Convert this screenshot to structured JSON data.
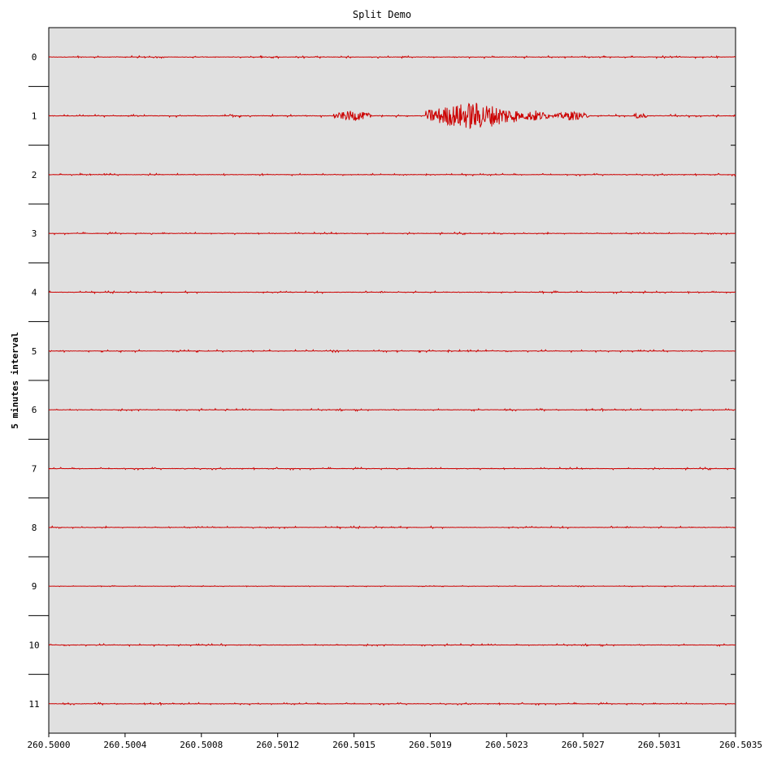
{
  "chart_data": {
    "type": "line",
    "title": "Split Demo",
    "xlabel": "",
    "ylabel": "5 minutes interval",
    "x_tick_labels": [
      "260.5000",
      "260.5004",
      "260.5008",
      "260.5012",
      "260.5015",
      "260.5019",
      "260.5023",
      "260.5027",
      "260.5031",
      "260.5035"
    ],
    "xlim": [
      260.5,
      260.5035
    ],
    "y_tick_labels": [
      "0",
      "1",
      "2",
      "3",
      "4",
      "5",
      "6",
      "7",
      "8",
      "9",
      "10",
      "11"
    ],
    "grid": false,
    "legend": "none",
    "series_color": "#cc0000",
    "background_color": "#e0e0e0",
    "series": [
      {
        "trace": 0,
        "amplitude": 0.04,
        "bursts": []
      },
      {
        "trace": 1,
        "amplitude": 0.05,
        "bursts": [
          {
            "start": 260.50145,
            "end": 260.50165,
            "amp": 0.18
          },
          {
            "start": 260.50192,
            "end": 260.5024,
            "amp": 0.48
          },
          {
            "start": 260.5024,
            "end": 260.50255,
            "amp": 0.2
          },
          {
            "start": 260.50258,
            "end": 260.50275,
            "amp": 0.16
          },
          {
            "start": 260.50298,
            "end": 260.50305,
            "amp": 0.12
          }
        ]
      },
      {
        "trace": 2,
        "amplitude": 0.04,
        "bursts": []
      },
      {
        "trace": 3,
        "amplitude": 0.04,
        "bursts": []
      },
      {
        "trace": 4,
        "amplitude": 0.04,
        "bursts": []
      },
      {
        "trace": 5,
        "amplitude": 0.04,
        "bursts": []
      },
      {
        "trace": 6,
        "amplitude": 0.04,
        "bursts": []
      },
      {
        "trace": 7,
        "amplitude": 0.04,
        "bursts": []
      },
      {
        "trace": 8,
        "amplitude": 0.04,
        "bursts": []
      },
      {
        "trace": 9,
        "amplitude": 0.02,
        "bursts": []
      },
      {
        "trace": 10,
        "amplitude": 0.04,
        "bursts": []
      },
      {
        "trace": 11,
        "amplitude": 0.04,
        "bursts": []
      }
    ]
  }
}
